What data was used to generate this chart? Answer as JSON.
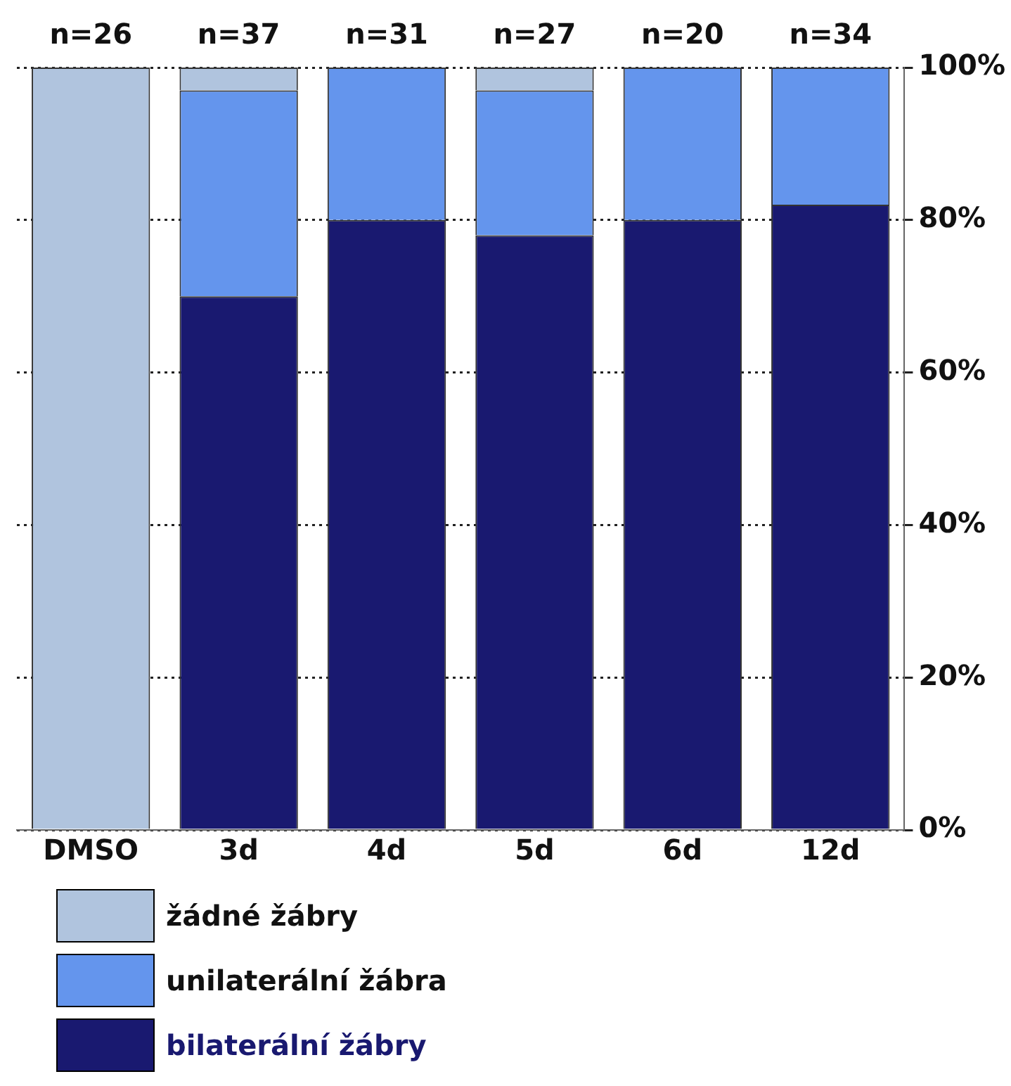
{
  "chart_data": {
    "type": "bar",
    "stacked": true,
    "categories": [
      "DMSO",
      "3d",
      "4d",
      "5d",
      "6d",
      "12d"
    ],
    "series": [
      {
        "name": "bilaterální žábry",
        "color": "#191970",
        "values": [
          0,
          70,
          80,
          78,
          80,
          82
        ]
      },
      {
        "name": "unilaterální žábra",
        "color": "#6495ed",
        "values": [
          0,
          27,
          20,
          19,
          20,
          18
        ]
      },
      {
        "name": "žádné žábry",
        "color": "#b0c4de",
        "values": [
          100,
          3,
          0,
          3,
          0,
          0
        ]
      }
    ],
    "ylim": [
      0,
      100
    ],
    "yticks": [
      {
        "value": 0,
        "label": "0%"
      },
      {
        "value": 20,
        "label": "20%"
      },
      {
        "value": 40,
        "label": "40%"
      },
      {
        "value": 60,
        "label": "60%"
      },
      {
        "value": 80,
        "label": "80%"
      },
      {
        "value": 100,
        "label": "100%"
      }
    ],
    "grid": "y",
    "legend": "bottom left",
    "annotations": [
      {
        "text": "n=26",
        "x": "DMSO",
        "y": 100
      },
      {
        "text": "n=37",
        "x": "3d",
        "y": 100
      },
      {
        "text": "n=31",
        "x": "4d",
        "y": 100
      },
      {
        "text": "n=27",
        "x": "5d",
        "y": 100
      },
      {
        "text": "n=20",
        "x": "6d",
        "y": 100
      },
      {
        "text": "n=34",
        "x": "12d",
        "y": 100
      }
    ]
  }
}
